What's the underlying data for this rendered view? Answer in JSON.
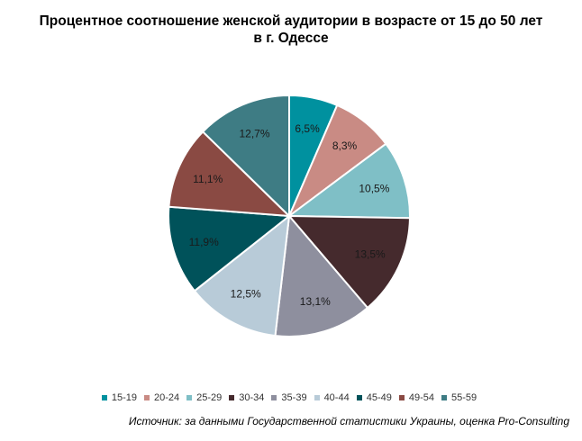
{
  "chart_data": {
    "type": "pie",
    "title": "Процентное соотношение женской аудитории в возрасте от 15 до 50 лет в г. Одессе",
    "categories": [
      "15-19",
      "20-24",
      "25-29",
      "30-34",
      "35-39",
      "40-44",
      "45-49",
      "49-54",
      "55-59"
    ],
    "values": [
      6.5,
      8.3,
      10.5,
      13.5,
      13.1,
      12.5,
      11.9,
      11.1,
      12.7
    ],
    "value_labels": [
      "6,5%",
      "8,3%",
      "10,5%",
      "13,5%",
      "13,1%",
      "12,5%",
      "11,9%",
      "11,1%",
      "12,7%"
    ],
    "colors": [
      "#00919f",
      "#c98b84",
      "#7fbfc6",
      "#452a2d",
      "#8e8f9e",
      "#b8cbd8",
      "#00525a",
      "#8a4a43",
      "#3e7c84"
    ],
    "legend_position": "bottom",
    "start_angle": "top, clockwise"
  },
  "source": "Источник: за данными Государственной статистики Украины, оценка Pro-Consulting"
}
